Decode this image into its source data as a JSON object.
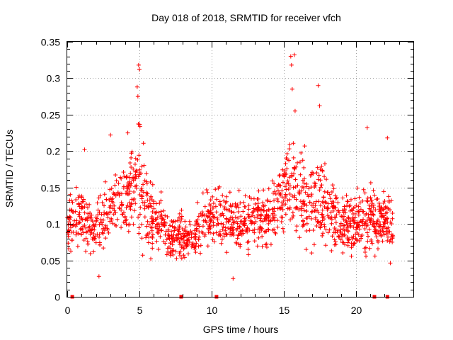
{
  "chart_data": {
    "type": "scatter",
    "title": "Day 018 of 2018, SRMTID for receiver vfch",
    "xlabel": "GPS time / hours",
    "ylabel": "SRMTID / TECUs",
    "xlim": [
      0,
      24
    ],
    "ylim": [
      0,
      0.35
    ],
    "x_ticks": [
      0,
      5,
      10,
      15,
      20
    ],
    "x_tick_labels": [
      "0",
      "5",
      "10",
      "15",
      "20"
    ],
    "y_ticks": [
      0,
      0.05,
      0.1,
      0.15,
      0.2,
      0.25,
      0.3,
      0.35
    ],
    "y_tick_labels": [
      "0",
      "0.05",
      "0.1",
      "0.15",
      "0.2",
      "0.25",
      "0.3",
      "0.35"
    ],
    "grid": true,
    "marker": "+",
    "color": "#ff0000",
    "data_x_range": [
      0,
      22.6
    ],
    "envelope": [
      {
        "x": 0.0,
        "mean": 0.1,
        "spread": 0.035
      },
      {
        "x": 1.0,
        "mean": 0.11,
        "spread": 0.04
      },
      {
        "x": 2.0,
        "mean": 0.09,
        "spread": 0.04
      },
      {
        "x": 3.0,
        "mean": 0.12,
        "spread": 0.045
      },
      {
        "x": 4.0,
        "mean": 0.13,
        "spread": 0.045
      },
      {
        "x": 4.7,
        "mean": 0.15,
        "spread": 0.06
      },
      {
        "x": 5.0,
        "mean": 0.16,
        "spread": 0.09
      },
      {
        "x": 5.5,
        "mean": 0.12,
        "spread": 0.045
      },
      {
        "x": 7.0,
        "mean": 0.085,
        "spread": 0.03
      },
      {
        "x": 8.5,
        "mean": 0.08,
        "spread": 0.03
      },
      {
        "x": 10.0,
        "mean": 0.11,
        "spread": 0.04
      },
      {
        "x": 12.0,
        "mean": 0.1,
        "spread": 0.04
      },
      {
        "x": 14.0,
        "mean": 0.11,
        "spread": 0.04
      },
      {
        "x": 15.5,
        "mean": 0.16,
        "spread": 0.07
      },
      {
        "x": 16.0,
        "mean": 0.13,
        "spread": 0.06
      },
      {
        "x": 17.5,
        "mean": 0.13,
        "spread": 0.06
      },
      {
        "x": 19.0,
        "mean": 0.1,
        "spread": 0.04
      },
      {
        "x": 21.0,
        "mean": 0.11,
        "spread": 0.045
      },
      {
        "x": 22.6,
        "mean": 0.1,
        "spread": 0.04
      }
    ],
    "peaks": [
      {
        "x": 4.95,
        "y": 0.318
      },
      {
        "x": 5.0,
        "y": 0.312
      },
      {
        "x": 4.85,
        "y": 0.288
      },
      {
        "x": 4.9,
        "y": 0.275
      },
      {
        "x": 15.5,
        "y": 0.33
      },
      {
        "x": 15.75,
        "y": 0.332
      },
      {
        "x": 15.55,
        "y": 0.318
      },
      {
        "x": 15.6,
        "y": 0.285
      },
      {
        "x": 17.4,
        "y": 0.29
      },
      {
        "x": 17.5,
        "y": 0.262
      },
      {
        "x": 15.8,
        "y": 0.255
      },
      {
        "x": 3.0,
        "y": 0.222
      },
      {
        "x": 4.2,
        "y": 0.225
      },
      {
        "x": 20.8,
        "y": 0.232
      },
      {
        "x": 22.2,
        "y": 0.218
      },
      {
        "x": 1.2,
        "y": 0.202
      },
      {
        "x": 2.2,
        "y": 0.028
      },
      {
        "x": 11.5,
        "y": 0.025
      }
    ],
    "gap_markers_x": [
      0.35,
      7.9,
      10.35,
      21.3,
      22.2
    ],
    "gap_marker_y": 0
  }
}
